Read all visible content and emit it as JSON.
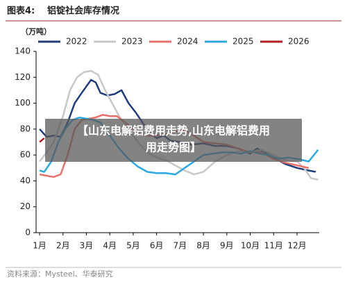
{
  "header": {
    "label": "图表4:",
    "title": "铝锭社会库存情况"
  },
  "chart_data": {
    "type": "line",
    "y_label": "（万吨）",
    "xlim": [
      0.85,
      12.95
    ],
    "xticks": [
      {
        "value": 1,
        "label": "1月"
      },
      {
        "value": 2,
        "label": "2月"
      },
      {
        "value": 3,
        "label": "3月"
      },
      {
        "value": 4,
        "label": "4月"
      },
      {
        "value": 5,
        "label": "5月"
      },
      {
        "value": 6,
        "label": "6月"
      },
      {
        "value": 7,
        "label": "7月"
      },
      {
        "value": 8,
        "label": "8月"
      },
      {
        "value": 9,
        "label": "9月"
      },
      {
        "value": 10,
        "label": "10月"
      },
      {
        "value": 11,
        "label": "11月"
      },
      {
        "value": 12,
        "label": "12月"
      }
    ],
    "ylim": [
      0,
      140
    ],
    "yticks": [
      0,
      20,
      40,
      60,
      80,
      100,
      120,
      140
    ],
    "series": [
      {
        "name": "2022",
        "color": "#1f3d7a",
        "x": [
          1,
          1.3,
          1.6,
          1.9,
          2.2,
          2.5,
          2.8,
          3.0,
          3.2,
          3.4,
          3.6,
          3.9,
          4.2,
          4.5,
          4.8,
          5.1,
          5.4,
          5.7,
          6.0,
          6.3,
          6.6,
          7.0,
          7.5,
          8.0,
          8.5,
          9.0,
          9.5,
          10.0,
          10.3,
          10.6,
          11.0,
          11.5,
          12.0,
          12.5,
          12.8
        ],
        "values": [
          80,
          74,
          75,
          74,
          85,
          100,
          108,
          113,
          118,
          116,
          108,
          106,
          107,
          110,
          100,
          93,
          85,
          77,
          73,
          75,
          71,
          70,
          68,
          69,
          67,
          67,
          65,
          61,
          65,
          62,
          58,
          53,
          50,
          48,
          47
        ]
      },
      {
        "name": "2023",
        "color": "#c8c8c8",
        "x": [
          1,
          1.3,
          1.6,
          2.0,
          2.3,
          2.6,
          2.9,
          3.2,
          3.5,
          3.8,
          4.1,
          4.4,
          4.8,
          5.2,
          5.6,
          6.0,
          6.4,
          6.8,
          7.2,
          7.6,
          8.0,
          8.5,
          9.0,
          9.5,
          10.0,
          10.5,
          11.0,
          11.5,
          12.0,
          12.3,
          12.6,
          12.9
        ],
        "values": [
          55,
          62,
          70,
          90,
          110,
          120,
          124,
          125,
          122,
          110,
          100,
          90,
          80,
          70,
          62,
          58,
          56,
          52,
          48,
          45,
          47,
          55,
          60,
          63,
          62,
          64,
          60,
          56,
          55,
          50,
          42,
          41
        ]
      },
      {
        "name": "2024",
        "color": "#e8706a",
        "x": [
          1,
          1.3,
          1.6,
          1.9,
          2.2,
          2.5,
          2.8,
          3.1,
          3.4,
          3.7,
          4.0,
          4.3,
          4.6,
          5.0,
          5.3,
          5.6,
          6.0,
          6.4,
          6.8,
          7.2,
          7.6,
          8.0,
          8.5,
          9.0,
          9.5,
          10.0,
          10.5,
          11.0,
          11.5,
          12.0,
          12.5
        ],
        "values": [
          45,
          44,
          43,
          45,
          60,
          80,
          87,
          88,
          89,
          91,
          90,
          90,
          86,
          80,
          76,
          75,
          75,
          76,
          78,
          79,
          75,
          70,
          69,
          68,
          65,
          62,
          62,
          57,
          54,
          52,
          50
        ]
      },
      {
        "name": "2025",
        "color": "#29a9e0",
        "x": [
          1,
          1.2,
          1.5,
          1.8,
          2.1,
          2.4,
          2.7,
          3.0,
          3.3,
          3.6,
          4.0,
          4.4,
          4.8,
          5.2,
          5.6,
          6.0,
          6.4,
          6.8,
          7.2,
          7.6,
          8.0,
          8.4,
          8.8,
          9.2,
          9.6,
          10.0,
          10.4,
          10.8,
          11.2,
          11.6,
          12.0,
          12.5,
          12.9
        ],
        "values": [
          48,
          47,
          55,
          70,
          80,
          87,
          89,
          88,
          87,
          85,
          75,
          65,
          57,
          51,
          47,
          46,
          46,
          45,
          50,
          55,
          60,
          61,
          62,
          62,
          61,
          63,
          61,
          60,
          57,
          58,
          57,
          55,
          64
        ]
      },
      {
        "name": "2026",
        "color": "#b01e23",
        "x": [
          1,
          1.2
        ],
        "values": [
          70,
          73
        ]
      }
    ]
  },
  "overlay": {
    "lines": [
      "【山东电解铝费用走势,山东电解铝费用",
      "用走势图】"
    ]
  },
  "source": "资料来源：Mysteel、华泰研究"
}
